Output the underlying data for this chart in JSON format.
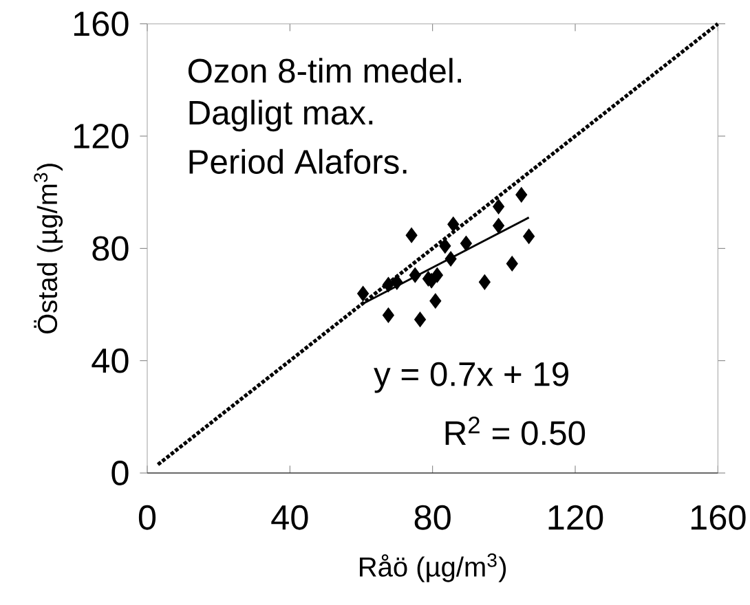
{
  "chart_data": {
    "type": "scatter",
    "xlabel": "Råö (µg/m$^{3}$)",
    "ylabel": "Östad (µg/m$^{3}$)",
    "xlim": [
      0,
      160
    ],
    "ylim": [
      0,
      160
    ],
    "xticks": [
      0,
      40,
      80,
      120,
      160
    ],
    "yticks": [
      0,
      40,
      80,
      120,
      160
    ],
    "grid": false,
    "annotations": [
      "Ozon 8-tim medel.",
      "Dagligt max.",
      "Period Alafors.",
      "y = 0.7x + 19",
      "R$^{2}$ = 0.50"
    ],
    "series": [
      {
        "color": "#000000",
        "marker": "diamond",
        "x": [
          60.5,
          67.6,
          70.0,
          67.6,
          74.1,
          75.1,
          76.5,
          78.8,
          79.7,
          81.3,
          80.8,
          83.5,
          85.1,
          85.8,
          89.4,
          94.6,
          98.5,
          98.5,
          102.3,
          104.9,
          107.0
        ],
        "values": [
          63.9,
          67.1,
          68.0,
          56.2,
          84.7,
          70.5,
          54.7,
          69.2,
          68.5,
          70.5,
          61.3,
          80.9,
          76.3,
          88.6,
          81.8,
          68.0,
          94.9,
          88.1,
          74.6,
          99.1,
          84.3
        ]
      },
      {
        "type": "line",
        "color": "#000000",
        "marker": "none",
        "line_style": "solid",
        "x": [
          60,
          107
        ],
        "values": [
          60,
          91
        ]
      },
      {
        "type": "line",
        "color": "#000000",
        "marker": "none",
        "line_style": "dotted",
        "x": [
          3,
          160
        ],
        "values": [
          3,
          160
        ]
      }
    ]
  }
}
